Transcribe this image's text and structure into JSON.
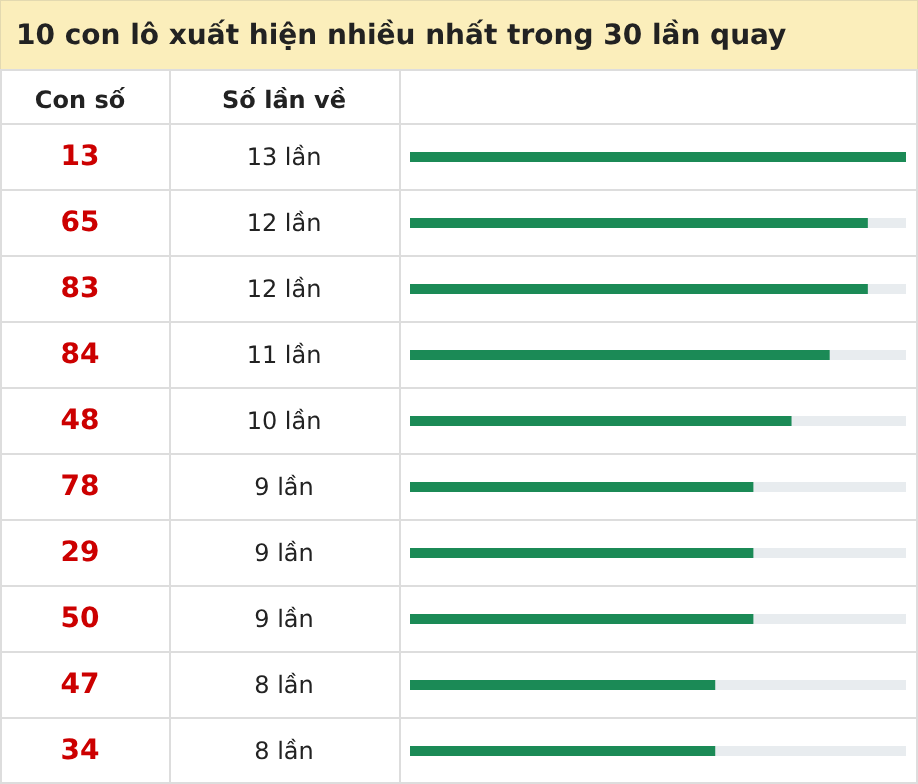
{
  "chart_data": {
    "type": "bar",
    "orientation": "horizontal",
    "title": "10 con lô xuất hiện nhiều nhất trong 30 lần quay",
    "ylabel": "Con số",
    "annotations": [
      "Số lần về"
    ],
    "categories": [
      "13",
      "65",
      "83",
      "84",
      "48",
      "78",
      "29",
      "50",
      "47",
      "34"
    ],
    "values": [
      13,
      12,
      12,
      11,
      10,
      9,
      9,
      9,
      8,
      8
    ],
    "value_labels": [
      "13 lần",
      "12 lần",
      "12 lần",
      "11 lần",
      "10 lần",
      "9 lần",
      "9 lần",
      "9 lần",
      "8 lần",
      "8 lần"
    ],
    "color": "#1b8a56",
    "grid": "y"
  }
}
